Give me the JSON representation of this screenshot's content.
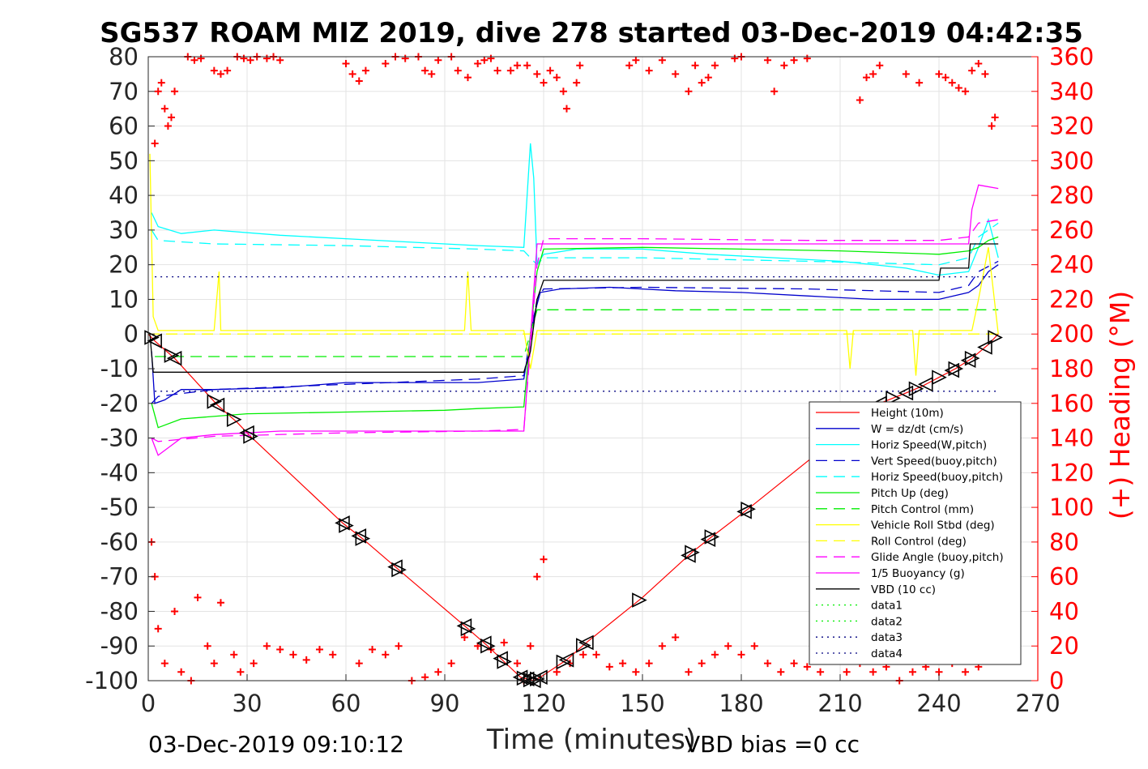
{
  "chart_data": {
    "type": "line",
    "title": "SG537 ROAM MIZ 2019, dive 278 started 03-Dec-2019 04:42:35",
    "xlabel": "Time (minutes)",
    "ylabel_right": "(+) Heading (°M)",
    "footer_left": "03-Dec-2019 09:10:12",
    "footer_right": "VBD bias =0 cc",
    "xlim": [
      0,
      270
    ],
    "ylim": [
      -100,
      80
    ],
    "ylim_right": [
      0,
      360
    ],
    "x_ticks": [
      0,
      30,
      60,
      90,
      120,
      150,
      180,
      210,
      240,
      270
    ],
    "y_ticks": [
      -100,
      -90,
      -80,
      -70,
      -60,
      -50,
      -40,
      -30,
      -20,
      -10,
      0,
      10,
      20,
      30,
      40,
      50,
      60,
      70,
      80
    ],
    "y_ticks_right": [
      0,
      20,
      40,
      60,
      80,
      100,
      120,
      140,
      160,
      180,
      200,
      220,
      240,
      260,
      280,
      300,
      320,
      340,
      360
    ],
    "grid": true,
    "legend_position": "bottom-right",
    "colors": {
      "height": "#ff0000",
      "w": "#0000cc",
      "horiz": "#00ffff",
      "pitch": "#00ee00",
      "roll": "#ffff00",
      "glide": "#ff00ff",
      "vbd": "#000000",
      "heading": "#ff0000",
      "data3": "#000080",
      "right_axis": "#ff0000"
    },
    "series": [
      {
        "key": "height",
        "name": "Height (10m)",
        "style": "solid",
        "color": "#ff0000",
        "x": [
          0,
          2,
          8,
          21,
          27,
          31,
          59,
          65,
          76,
          97,
          103,
          108,
          113,
          115,
          117,
          119,
          127,
          133,
          150,
          165,
          171,
          182,
          222,
          230,
          235,
          240,
          245,
          250,
          255,
          258
        ],
        "y": [
          0,
          -2,
          -7,
          -20.5,
          -25.5,
          -29.5,
          -54.5,
          -59,
          -68,
          -85,
          -90,
          -94.5,
          -99,
          -99.5,
          -100,
          -99,
          -94,
          -89,
          -76,
          -63,
          -58.5,
          -50.5,
          -20,
          -17,
          -15,
          -12.5,
          -10,
          -7,
          -3,
          0
        ]
      },
      {
        "key": "w",
        "name": "W = dz/dt (cm/s)",
        "style": "solid",
        "color": "#0000cc",
        "x": [
          1,
          2,
          5,
          10,
          20,
          40,
          60,
          80,
          100,
          114,
          117,
          119,
          125,
          140,
          160,
          180,
          200,
          220,
          240,
          249,
          252,
          255,
          258
        ],
        "y": [
          -5,
          -20,
          -19,
          -16,
          -16,
          -15.5,
          -14,
          -14,
          -14,
          -13,
          5,
          12,
          13,
          13.5,
          12.5,
          12,
          11,
          10,
          10,
          12,
          14,
          18,
          20
        ]
      },
      {
        "key": "horiz",
        "name": "Horiz Speed(W,pitch)",
        "style": "solid",
        "color": "#00ffff",
        "x": [
          1,
          3,
          10,
          20,
          40,
          60,
          80,
          100,
          114,
          116,
          117,
          118,
          120,
          130,
          150,
          170,
          190,
          210,
          230,
          240,
          249,
          252,
          255,
          258
        ],
        "y": [
          35,
          31,
          29,
          30,
          28.5,
          27.5,
          26.5,
          25.5,
          25,
          55,
          45,
          20,
          23,
          24.5,
          24.5,
          23,
          22,
          21,
          19,
          17,
          18,
          25,
          33,
          22
        ]
      },
      {
        "key": "vert_buoy",
        "name": "Vert Speed(buoy,pitch)",
        "style": "dashed",
        "color": "#0000cc",
        "x": [
          1,
          3,
          20,
          60,
          100,
          114,
          118,
          120,
          150,
          200,
          240,
          249,
          252,
          258
        ],
        "y": [
          -20,
          -18,
          -16,
          -14.5,
          -13,
          -12,
          10,
          13,
          13.5,
          13,
          12,
          14,
          18,
          21
        ]
      },
      {
        "key": "horiz_buoy",
        "name": "Horiz Speed(buoy,pitch)",
        "style": "dashed",
        "color": "#00ffff",
        "x": [
          1,
          3,
          20,
          60,
          100,
          114,
          118,
          120,
          150,
          200,
          240,
          249,
          252,
          258
        ],
        "y": [
          30,
          27,
          26,
          25.5,
          24.5,
          24,
          20,
          22,
          22,
          21,
          20,
          22,
          28,
          32
        ]
      },
      {
        "key": "pitch",
        "name": "Pitch Up (deg)",
        "style": "solid",
        "color": "#00ee00",
        "x": [
          1,
          3,
          10,
          30,
          60,
          90,
          100,
          114,
          116,
          118,
          120,
          150,
          180,
          210,
          240,
          249,
          252,
          255,
          258
        ],
        "y": [
          -20,
          -27,
          -24.5,
          -23,
          -22.5,
          -22,
          -21.5,
          -21,
          0,
          18,
          24.5,
          25,
          24.5,
          24,
          23,
          24,
          25,
          27,
          28
        ]
      },
      {
        "key": "pitch_ctrl",
        "name": "Pitch Control (mm)",
        "style": "dashed",
        "color": "#00ee00",
        "x": [
          2,
          114,
          118,
          258
        ],
        "y": [
          -6.5,
          -6.5,
          7,
          7
        ]
      },
      {
        "key": "roll",
        "name": "Vehicle Roll Stbd (deg)",
        "style": "solid",
        "color": "#ffff00",
        "x": [
          0.5,
          1.5,
          3,
          20,
          21.5,
          22,
          22.5,
          30,
          40,
          60,
          80,
          96,
          97,
          98,
          100,
          114,
          116,
          118,
          120,
          135,
          150,
          165,
          185,
          205,
          212,
          213,
          214,
          232,
          233,
          234,
          250,
          252,
          255,
          258
        ],
        "y": [
          52,
          5,
          1,
          1,
          18,
          1,
          1,
          1,
          1,
          1,
          1,
          1,
          18,
          1,
          1,
          1,
          -10,
          1,
          1,
          1,
          1,
          1,
          1,
          1,
          1,
          -10,
          1,
          1,
          -12,
          1,
          1,
          10,
          25,
          0
        ]
      },
      {
        "key": "roll_ctrl",
        "name": "Roll Control (deg)",
        "style": "dashed",
        "color": "#ffff00",
        "x": [
          0,
          258
        ],
        "y": [
          0,
          0
        ]
      },
      {
        "key": "glide",
        "name": "Glide Angle (buoy,pitch)",
        "style": "dashed",
        "color": "#ff00ff",
        "x": [
          1,
          3,
          20,
          60,
          100,
          114,
          118,
          120,
          150,
          200,
          240,
          249,
          252,
          258
        ],
        "y": [
          -30,
          -31,
          -29.5,
          -28.5,
          -28,
          -27.5,
          20,
          27.5,
          27.5,
          27,
          27,
          28,
          32,
          33
        ]
      },
      {
        "key": "buoyancy",
        "name": "1/5 Buoyancy (g)",
        "style": "solid",
        "color": "#ff00ff",
        "x": [
          1,
          3,
          10,
          20,
          40,
          114,
          118,
          120,
          240,
          249,
          250,
          252,
          258
        ],
        "y": [
          -30,
          -35,
          -30,
          -29,
          -28,
          -28,
          26,
          26,
          26,
          26,
          36,
          43,
          42
        ]
      },
      {
        "key": "vbd",
        "name": "VBD (10 cc)",
        "style": "solid",
        "color": "#000000",
        "x": [
          0.5,
          1.5,
          2,
          114,
          116,
          118,
          120,
          240,
          240.5,
          249,
          249.5,
          258
        ],
        "y": [
          0,
          -11,
          -11,
          -11,
          -5,
          10,
          15.5,
          15.5,
          19,
          19,
          26,
          26
        ]
      },
      {
        "key": "data1",
        "name": "data1",
        "style": "dotted",
        "color": "#00ee00",
        "x": [],
        "y": []
      },
      {
        "key": "data2",
        "name": "data2",
        "style": "dotted",
        "color": "#00ee00",
        "x": [],
        "y": []
      },
      {
        "key": "data3",
        "name": "data3",
        "style": "dotted",
        "color": "#000080",
        "x": [
          2,
          258,
          null,
          2,
          258
        ],
        "y": [
          16.5,
          16.5,
          null,
          -16.5,
          -16.5
        ]
      },
      {
        "key": "data4",
        "name": "data4",
        "style": "dotted",
        "color": "#000080",
        "x": [],
        "y": []
      }
    ],
    "heading_scatter": {
      "name": "(+) Heading (°M)",
      "x": [
        2,
        3,
        4,
        5,
        6,
        7,
        8,
        12,
        14,
        16,
        20,
        22,
        24,
        27,
        29,
        31,
        33,
        36,
        38,
        40,
        60,
        62,
        64,
        66,
        72,
        75,
        78,
        82,
        84,
        86,
        88,
        92,
        94,
        97,
        100,
        102,
        104,
        106,
        110,
        112,
        115,
        118,
        120,
        122,
        124,
        126,
        127,
        130,
        131,
        146,
        148,
        152,
        156,
        160,
        164,
        166,
        168,
        170,
        172,
        178,
        180,
        188,
        190,
        193,
        196,
        200,
        216,
        218,
        220,
        222,
        230,
        234,
        240,
        242,
        244,
        246,
        248,
        250,
        252,
        254,
        256,
        257
      ],
      "y": [
        310,
        340,
        345,
        330,
        320,
        325,
        340,
        360,
        358,
        359,
        352,
        350,
        352,
        360,
        359,
        358,
        360,
        359,
        360,
        358,
        356,
        350,
        346,
        352,
        356,
        360,
        359,
        360,
        352,
        350,
        358,
        360,
        352,
        348,
        356,
        358,
        359,
        352,
        352,
        355,
        355,
        350,
        345,
        352,
        348,
        340,
        330,
        345,
        355,
        355,
        358,
        352,
        358,
        350,
        340,
        355,
        345,
        348,
        355,
        359,
        360,
        358,
        340,
        355,
        358,
        359,
        335,
        348,
        350,
        355,
        350,
        345,
        350,
        348,
        345,
        342,
        340,
        352,
        356,
        350,
        320,
        325
      ]
    },
    "heading_scatter_low": {
      "x": [
        1,
        2,
        3,
        5,
        8,
        10,
        13,
        15,
        18,
        20,
        22,
        26,
        28,
        32,
        36,
        40,
        44,
        48,
        52,
        56,
        64,
        68,
        72,
        76,
        80,
        84,
        88,
        92,
        96,
        100,
        104,
        108,
        112,
        114,
        116,
        118,
        120,
        124,
        128,
        132,
        136,
        140,
        144,
        148,
        152,
        156,
        160,
        164,
        168,
        172,
        176,
        180,
        184,
        188,
        192,
        196,
        200,
        204,
        208,
        212,
        216,
        220,
        224,
        228,
        232,
        236,
        240,
        244,
        248,
        252
      ],
      "y": [
        80,
        60,
        30,
        10,
        40,
        5,
        0,
        48,
        20,
        10,
        45,
        15,
        5,
        10,
        20,
        18,
        15,
        12,
        18,
        15,
        10,
        18,
        15,
        20,
        0,
        2,
        5,
        10,
        25,
        20,
        18,
        22,
        10,
        0,
        20,
        60,
        70,
        5,
        10,
        15,
        15,
        8,
        10,
        5,
        10,
        20,
        25,
        5,
        10,
        15,
        20,
        15,
        20,
        10,
        5,
        10,
        8,
        5,
        12,
        5,
        10,
        5,
        8,
        0,
        5,
        8,
        5,
        10,
        5,
        8
      ]
    },
    "vbd_marker_x": [
      1,
      2,
      7,
      8,
      20,
      21,
      26,
      30,
      31,
      59,
      60,
      64,
      65,
      75,
      76,
      96,
      97,
      102,
      103,
      107,
      108,
      113,
      114,
      115,
      116,
      117,
      118,
      119,
      126,
      127,
      132,
      133,
      149,
      164,
      165,
      170,
      171,
      181,
      182,
      222,
      226,
      230,
      233,
      236,
      240,
      244,
      245,
      249,
      250,
      254,
      257
    ],
    "legend": [
      "Height (10m)",
      "W = dz/dt (cm/s)",
      "Horiz Speed(W,pitch)",
      "Vert Speed(buoy,pitch)",
      "Horiz Speed(buoy,pitch)",
      "Pitch Up (deg)",
      "Pitch Control (mm)",
      "Vehicle Roll Stbd (deg)",
      "Roll Control (deg)",
      "Glide Angle (buoy,pitch)",
      "1/5 Buoyancy (g)",
      "VBD (10 cc)",
      "data1",
      "data2",
      "data3",
      "data4"
    ]
  }
}
